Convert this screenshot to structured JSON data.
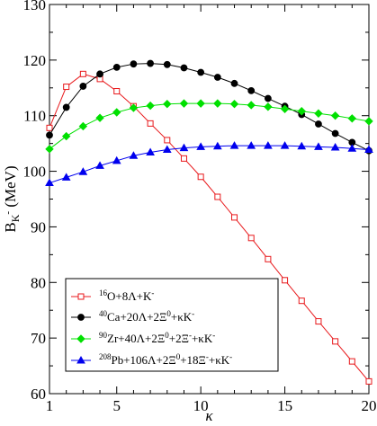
{
  "chart_data": {
    "type": "line",
    "xlabel": "κ",
    "ylabel": {
      "main": "B",
      "sub": "K",
      "sup": "-",
      "unit": " (MeV)"
    },
    "xlim": [
      1,
      20
    ],
    "ylim": [
      60,
      130
    ],
    "xticks": [
      1,
      5,
      10,
      15,
      20
    ],
    "yticks": [
      60,
      70,
      80,
      90,
      100,
      110,
      120,
      130
    ],
    "grid": false,
    "legend_position": "bottom-left",
    "x": [
      1,
      2,
      3,
      4,
      5,
      6,
      7,
      8,
      9,
      10,
      11,
      12,
      13,
      14,
      15,
      16,
      17,
      18,
      19,
      20
    ],
    "series": [
      {
        "name": "16O+8Λ+K-",
        "legend_parts": [
          [
            "sup",
            "16"
          ],
          [
            "n",
            "O+8Λ+K"
          ],
          [
            "sup",
            "-"
          ]
        ],
        "color": "#e8191c",
        "marker": "square-open",
        "values": [
          107.8,
          115.2,
          117.5,
          116.6,
          114.4,
          111.7,
          108.6,
          105.6,
          102.3,
          99.0,
          95.4,
          91.7,
          88.0,
          84.2,
          80.4,
          76.7,
          73.0,
          69.4,
          65.8,
          62.2
        ]
      },
      {
        "name": "40Ca+20Λ+2Ξ0+κK-",
        "legend_parts": [
          [
            "sup",
            "40"
          ],
          [
            "n",
            "Ca+20Λ+2Ξ"
          ],
          [
            "sup",
            "0"
          ],
          [
            "n",
            "+κK"
          ],
          [
            "sup",
            "-"
          ]
        ],
        "color": "#000000",
        "marker": "circle-filled",
        "values": [
          106.5,
          111.5,
          115.3,
          117.5,
          118.7,
          119.3,
          119.4,
          119.2,
          118.6,
          117.8,
          116.9,
          115.8,
          114.5,
          113.1,
          111.7,
          110.2,
          108.5,
          106.8,
          105.2,
          103.7
        ]
      },
      {
        "name": "90Zr+40Λ+2Ξ0+2Ξ-+κK-",
        "legend_parts": [
          [
            "sup",
            "90"
          ],
          [
            "n",
            "Zr+40Λ+2Ξ"
          ],
          [
            "sup",
            "0"
          ],
          [
            "n",
            "+2Ξ"
          ],
          [
            "sup",
            "-"
          ],
          [
            "n",
            "+κK"
          ],
          [
            "sup",
            "-"
          ]
        ],
        "color": "#00e000",
        "marker": "diamond-filled",
        "values": [
          104.0,
          106.3,
          108.1,
          109.6,
          110.6,
          111.4,
          111.8,
          112.1,
          112.2,
          112.2,
          112.2,
          112.1,
          111.9,
          111.6,
          111.2,
          110.8,
          110.4,
          110.0,
          109.5,
          109.0
        ]
      },
      {
        "name": "208Pb+106Λ+2Ξ0+18Ξ-+κK-",
        "legend_parts": [
          [
            "sup",
            "208"
          ],
          [
            "n",
            "Pb+106Λ+2Ξ"
          ],
          [
            "sup",
            "0"
          ],
          [
            "n",
            "+18Ξ"
          ],
          [
            "sup",
            "-"
          ],
          [
            "n",
            "+κK"
          ],
          [
            "sup",
            "-"
          ]
        ],
        "color": "#0000ee",
        "marker": "triangle-filled",
        "values": [
          97.9,
          98.9,
          99.9,
          101.0,
          101.9,
          102.8,
          103.4,
          103.9,
          104.2,
          104.4,
          104.5,
          104.6,
          104.6,
          104.6,
          104.6,
          104.5,
          104.4,
          104.3,
          104.1,
          103.9
        ]
      }
    ]
  }
}
